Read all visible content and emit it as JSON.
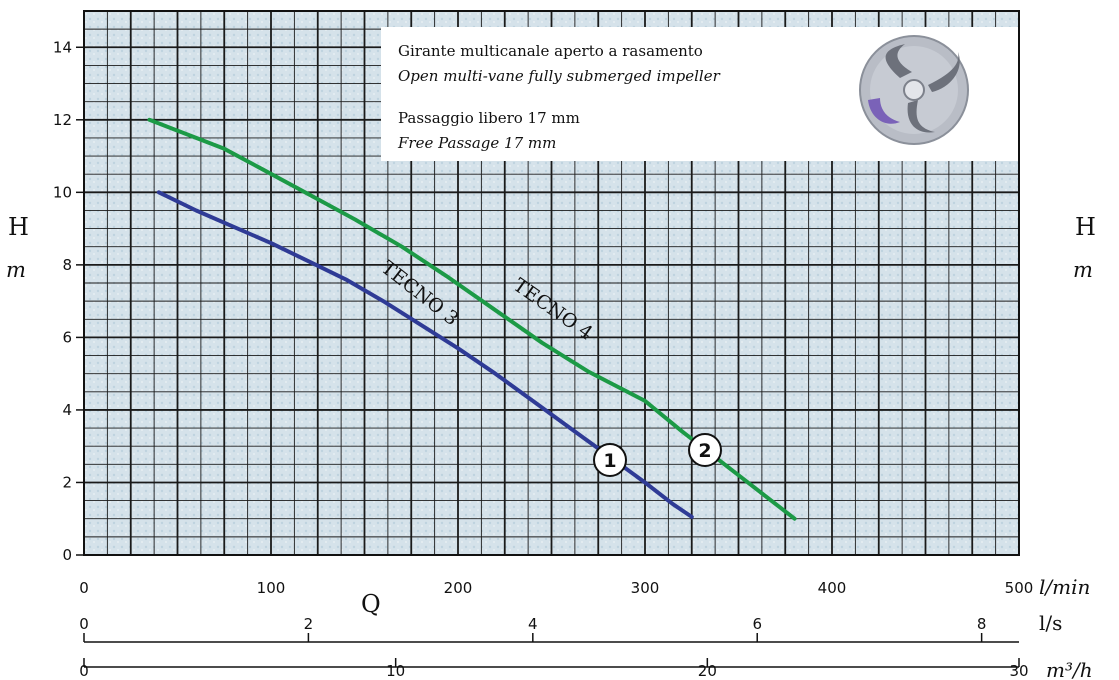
{
  "chart_data": {
    "type": "line",
    "y_label": "H",
    "y_unit": "m",
    "x_label": "Q",
    "y_ticks": [
      "0",
      "2",
      "4",
      "6",
      "8",
      "10",
      "12",
      "14"
    ],
    "ylim": [
      0,
      15
    ],
    "grid": true,
    "x_axes": [
      {
        "unit": "l/min",
        "ticks": [
          "0",
          "100",
          "200",
          "300",
          "400",
          "500"
        ],
        "range": [
          0,
          500
        ]
      },
      {
        "unit": "l/s",
        "ticks": [
          "0",
          "2",
          "4",
          "6",
          "8"
        ],
        "range": [
          0,
          8.333
        ]
      },
      {
        "unit": "m³/h",
        "ticks": [
          "0",
          "10",
          "20",
          "30"
        ],
        "range": [
          0,
          30
        ]
      }
    ],
    "series": [
      {
        "name": "TECNO 3",
        "marker": "1",
        "color": "#2f3b96",
        "x": [
          40,
          60,
          80,
          100,
          120,
          140,
          160,
          180,
          200,
          220,
          240,
          260,
          280,
          300,
          315,
          325
        ],
        "y": [
          10.0,
          9.5,
          9.05,
          8.6,
          8.1,
          7.6,
          7.0,
          6.35,
          5.7,
          5.0,
          4.25,
          3.5,
          2.75,
          2.0,
          1.4,
          1.05
        ]
      },
      {
        "name": "TECNO 4",
        "marker": "2",
        "color": "#1c9a46",
        "x": [
          35,
          55,
          75,
          95,
          120,
          145,
          170,
          195,
          220,
          245,
          270,
          300,
          320,
          340,
          360,
          380
        ],
        "y": [
          12.0,
          11.6,
          11.2,
          10.65,
          9.95,
          9.25,
          8.5,
          7.65,
          6.75,
          5.85,
          5.05,
          4.25,
          3.4,
          2.6,
          1.8,
          1.0
        ]
      }
    ]
  },
  "info": {
    "line1": "Girante multicanale aperto a rasamento",
    "line2": "Open multi-vane fully submerged impeller",
    "line3": "Passaggio libero 17 mm",
    "line4": "Free Passage 17 mm"
  }
}
